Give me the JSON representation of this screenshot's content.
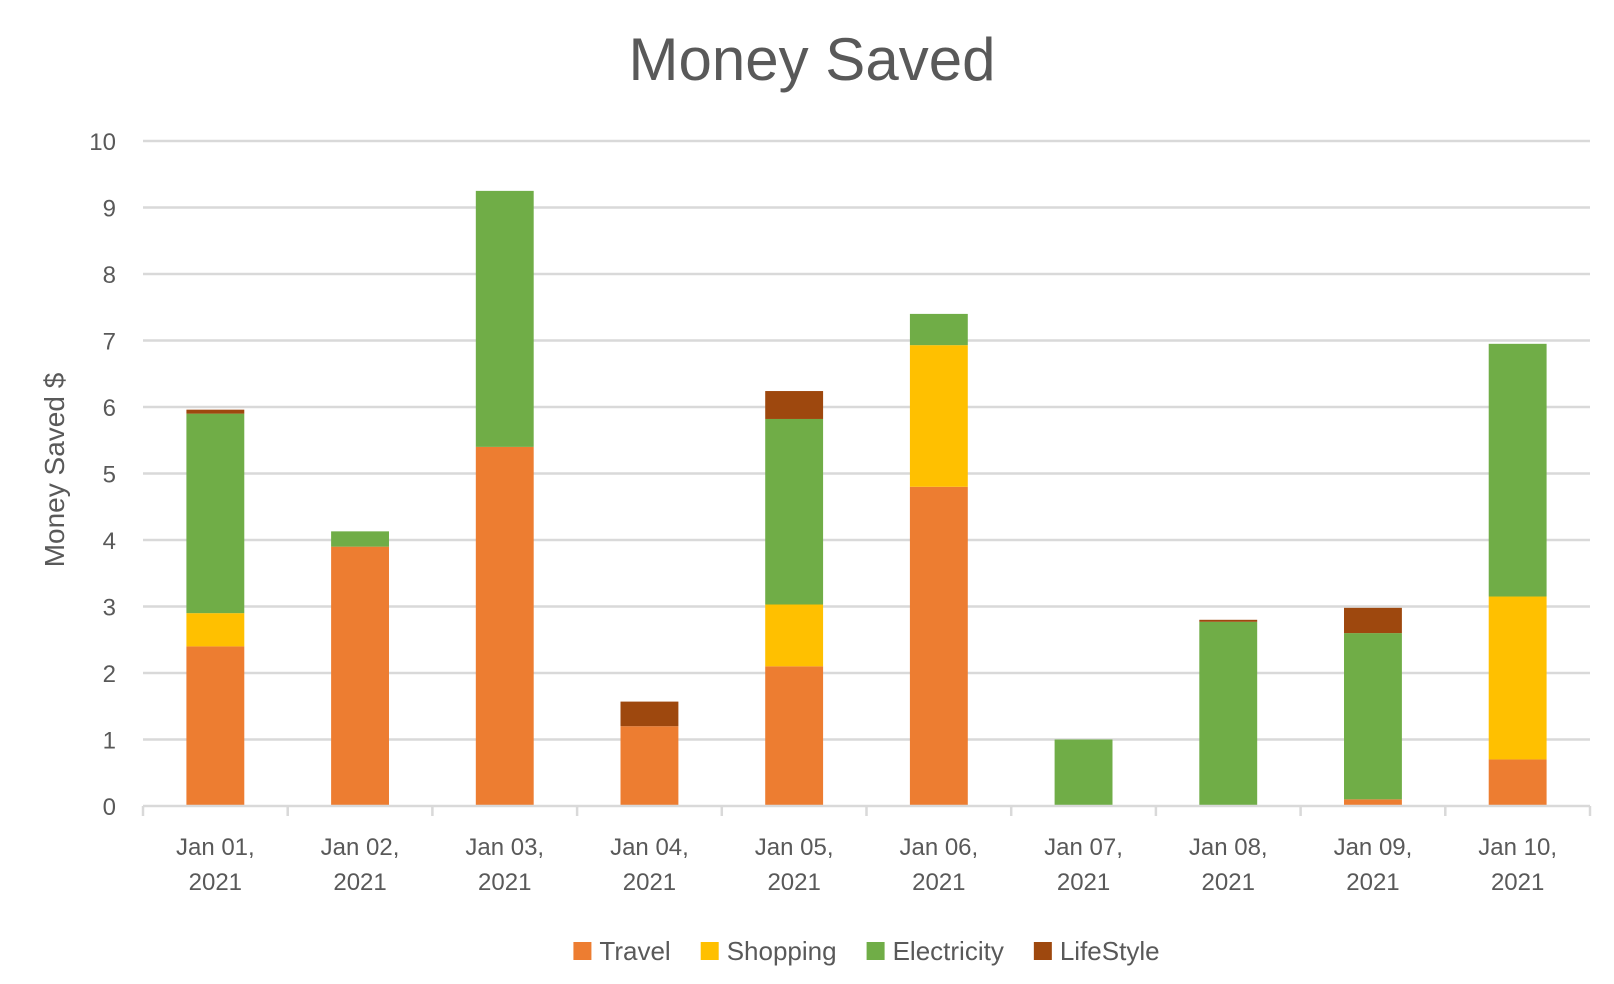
{
  "chart_data": {
    "type": "bar",
    "stacked": true,
    "title": "Money Saved",
    "xlabel": "",
    "ylabel": "Money Saved $",
    "ylim": [
      0,
      10
    ],
    "yticks": [
      0,
      1,
      2,
      3,
      4,
      5,
      6,
      7,
      8,
      9,
      10
    ],
    "grid": true,
    "legend_position": "bottom",
    "categories": [
      [
        "Jan 01,",
        "2021"
      ],
      [
        "Jan 02,",
        "2021"
      ],
      [
        "Jan 03,",
        "2021"
      ],
      [
        "Jan 04,",
        "2021"
      ],
      [
        "Jan 05,",
        "2021"
      ],
      [
        "Jan 06,",
        "2021"
      ],
      [
        "Jan 07,",
        "2021"
      ],
      [
        "Jan 08,",
        "2021"
      ],
      [
        "Jan 09,",
        "2021"
      ],
      [
        "Jan 10,",
        "2021"
      ]
    ],
    "series": [
      {
        "name": "Travel",
        "color": "#ED7D31",
        "values": [
          2.4,
          3.9,
          5.4,
          1.2,
          2.1,
          4.8,
          0,
          0,
          0.1,
          0.7
        ]
      },
      {
        "name": "Shopping",
        "color": "#FFC000",
        "values": [
          0.5,
          0,
          0,
          0,
          0.93,
          2.13,
          0,
          0,
          0,
          2.45
        ]
      },
      {
        "name": "Electricity",
        "color": "#70AD47",
        "values": [
          3.0,
          0.23,
          3.85,
          0,
          2.79,
          0.47,
          1.0,
          2.77,
          2.5,
          3.8
        ]
      },
      {
        "name": "LifeStyle",
        "color": "#9E480E",
        "values": [
          0.06,
          0,
          0,
          0.37,
          0.42,
          0,
          0,
          0.03,
          0.38,
          0
        ]
      }
    ]
  },
  "colors": {
    "grid": "#d9d9d9",
    "axis": "#d9d9d9",
    "text": "#595959",
    "background": "#ffffff"
  }
}
